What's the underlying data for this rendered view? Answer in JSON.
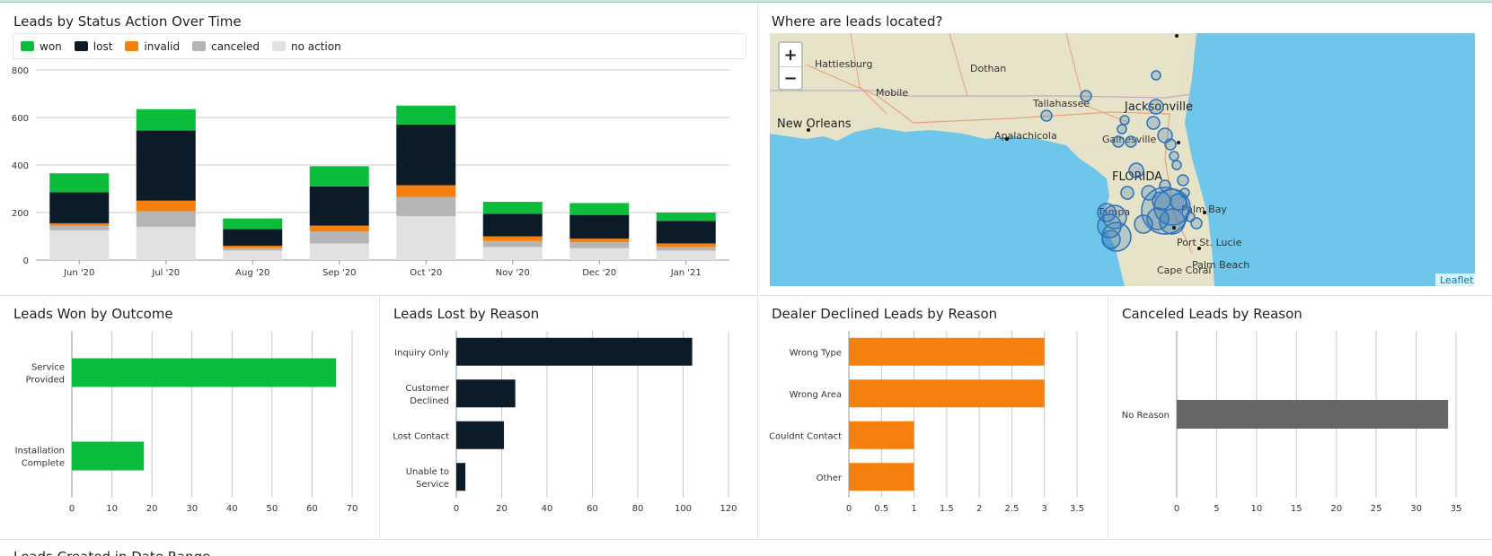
{
  "colors": {
    "won": "#0cbc3b",
    "lost": "#0c1b28",
    "invalid": "#f6800e",
    "canceled": "#b5b5b5",
    "no_action": "#e1e1e1",
    "dealer_declined": "#f6800e",
    "canceled_reason": "#666666",
    "map_water": "#6ec6ea",
    "map_land": "#e7e3c8",
    "marker": "#2c72b8"
  },
  "panels": {
    "status_over_time": {
      "title": "Leads by Status Action Over Time"
    },
    "map": {
      "title": "Where are leads located?",
      "zoom_in": "+",
      "zoom_out": "−",
      "attribution": "Leaflet"
    },
    "won": {
      "title": "Leads Won by Outcome"
    },
    "lost": {
      "title": "Leads Lost by Reason"
    },
    "declined": {
      "title": "Dealer Declined Leads by Reason"
    },
    "canceled": {
      "title": "Canceled Leads by Reason"
    },
    "created": {
      "title": "Leads Created in Date Range"
    }
  },
  "legend": [
    {
      "label": "won",
      "color": "#0cbc3b"
    },
    {
      "label": "lost",
      "color": "#0c1b28"
    },
    {
      "label": "invalid",
      "color": "#f6800e"
    },
    {
      "label": "canceled",
      "color": "#b5b5b5"
    },
    {
      "label": "no action",
      "color": "#e1e1e1"
    }
  ],
  "map_labels": [
    {
      "name": "Hattiesburg",
      "big": false
    },
    {
      "name": "Dothan",
      "big": false
    },
    {
      "name": "Mobile",
      "big": false
    },
    {
      "name": "Tallahassee",
      "big": false
    },
    {
      "name": "Jacksonville",
      "big": true
    },
    {
      "name": "New Orleans",
      "big": true
    },
    {
      "name": "Apalachicola",
      "big": false
    },
    {
      "name": "Gainesville",
      "big": false
    },
    {
      "name": "FLORIDA",
      "big": true
    },
    {
      "name": "Tampa",
      "big": false
    },
    {
      "name": "Palm Bay",
      "big": false
    },
    {
      "name": "Port St. Lucie",
      "big": false
    },
    {
      "name": "Cape Coral",
      "big": false
    },
    {
      "name": "Palm Beach",
      "big": false
    }
  ],
  "chart_data": [
    {
      "type": "bar",
      "title": "Leads by Status Action Over Time",
      "categories": [
        "Jun '20",
        "Jul '20",
        "Aug '20",
        "Sep '20",
        "Oct '20",
        "Nov '20",
        "Dec '20",
        "Jan '21"
      ],
      "ylim": [
        0,
        800
      ],
      "yticks": [
        "0",
        "200",
        "400",
        "600",
        "800"
      ],
      "stacked": true,
      "legend_position": "top",
      "series": [
        {
          "name": "no action",
          "values": [
            125,
            140,
            40,
            70,
            185,
            55,
            50,
            40
          ]
        },
        {
          "name": "canceled",
          "values": [
            20,
            65,
            10,
            50,
            80,
            25,
            25,
            15
          ]
        },
        {
          "name": "invalid",
          "values": [
            10,
            45,
            10,
            25,
            50,
            20,
            15,
            15
          ]
        },
        {
          "name": "lost",
          "values": [
            130,
            295,
            70,
            165,
            255,
            95,
            100,
            95
          ]
        },
        {
          "name": "won",
          "values": [
            80,
            90,
            45,
            85,
            80,
            50,
            50,
            35
          ]
        }
      ]
    },
    {
      "type": "bar",
      "orientation": "horizontal",
      "title": "Leads Won by Outcome",
      "categories": [
        "Service Provided",
        "Installation Complete"
      ],
      "values": [
        66,
        18
      ],
      "xlim": [
        0,
        70
      ],
      "xticks": [
        "0",
        "10",
        "20",
        "30",
        "40",
        "50",
        "60",
        "70"
      ]
    },
    {
      "type": "bar",
      "orientation": "horizontal",
      "title": "Leads Lost by Reason",
      "categories": [
        "Inquiry Only",
        "Customer Declined",
        "Lost Contact",
        "Unable to Service"
      ],
      "values": [
        104,
        26,
        21,
        4
      ],
      "xlim": [
        0,
        120
      ],
      "xticks": [
        "0",
        "20",
        "40",
        "60",
        "80",
        "100",
        "120"
      ]
    },
    {
      "type": "bar",
      "orientation": "horizontal",
      "title": "Dealer Declined Leads by Reason",
      "categories": [
        "Wrong Type",
        "Wrong Area",
        "Couldnt Contact",
        "Other"
      ],
      "values": [
        3,
        3,
        1,
        1
      ],
      "xlim": [
        0,
        3.5
      ],
      "xticks": [
        "0",
        "0.5",
        "1",
        "1.5",
        "2",
        "2.5",
        "3",
        "3.5"
      ]
    },
    {
      "type": "bar",
      "orientation": "horizontal",
      "title": "Canceled Leads by Reason",
      "categories": [
        "No Reason"
      ],
      "values": [
        34
      ],
      "xlim": [
        0,
        35
      ],
      "xticks": [
        "0",
        "5",
        "10",
        "15",
        "20",
        "25",
        "30",
        "35"
      ]
    }
  ]
}
